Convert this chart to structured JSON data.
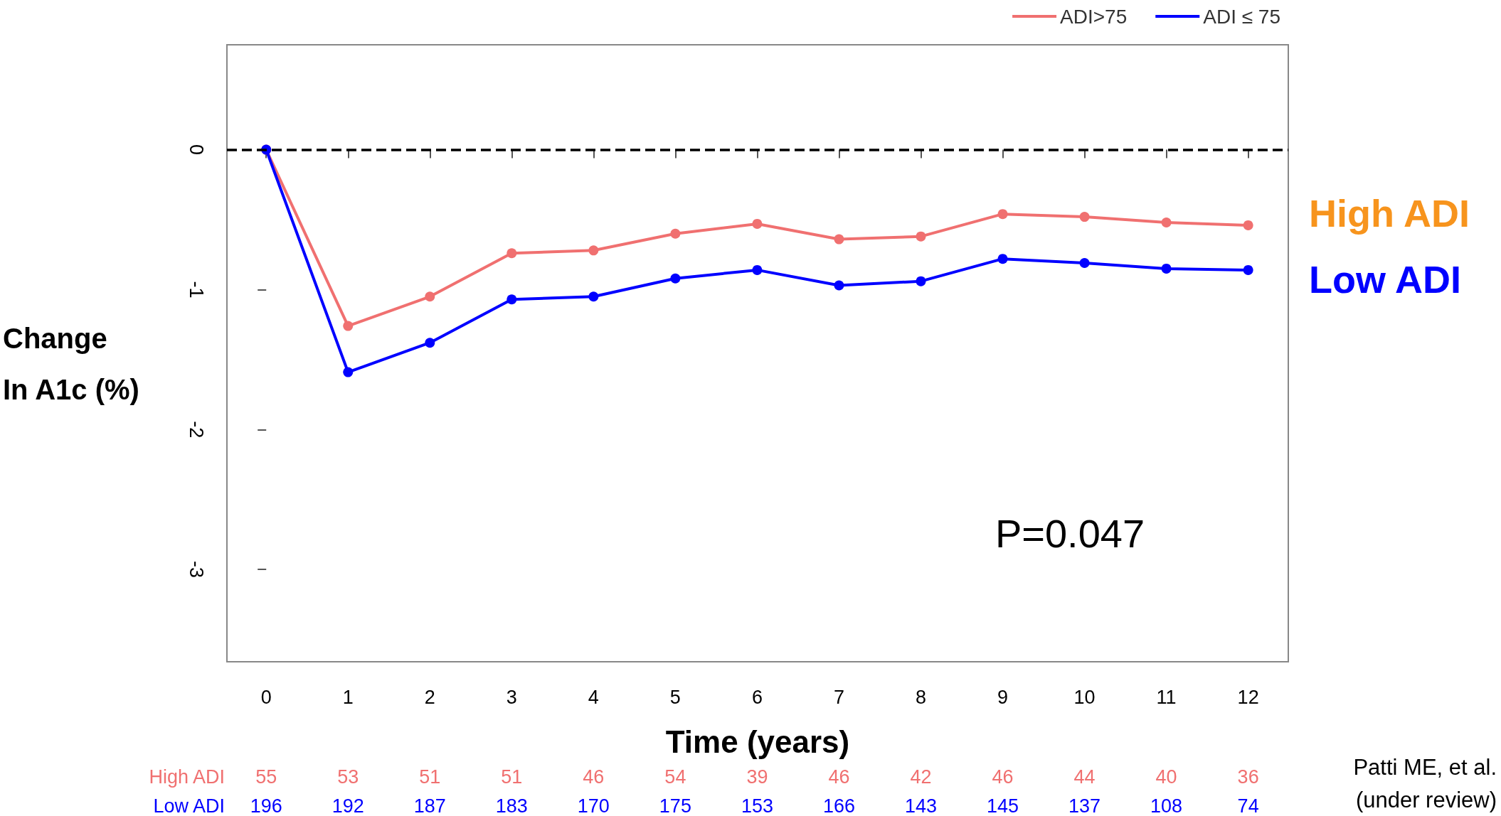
{
  "chart_data": {
    "type": "line",
    "xlabel": "Time (years)",
    "ylabel": "Change In A1c (%)",
    "x": [
      0,
      1,
      2,
      3,
      4,
      5,
      6,
      7,
      8,
      9,
      10,
      11,
      12
    ],
    "series": [
      {
        "name": "ADI>75",
        "color": "#f07070",
        "values": [
          0,
          -1.26,
          -1.05,
          -0.74,
          -0.72,
          -0.6,
          -0.53,
          -0.64,
          -0.62,
          -0.46,
          -0.48,
          -0.52,
          -0.54
        ]
      },
      {
        "name": "ADI ≤ 75",
        "color": "#0000ff",
        "values": [
          0,
          -1.59,
          -1.38,
          -1.07,
          -1.05,
          -0.92,
          -0.86,
          -0.97,
          -0.94,
          -0.78,
          -0.81,
          -0.85,
          -0.86
        ]
      }
    ],
    "xlim": [
      -0.48,
      12.49
    ],
    "xticks": [
      0,
      1,
      2,
      3,
      4,
      5,
      6,
      7,
      8,
      9,
      10,
      11,
      12
    ],
    "ylim": [
      -3.66,
      0.75
    ],
    "yticks": [
      -3,
      -2,
      -1,
      0
    ],
    "ref_lines": [
      {
        "axis": "y",
        "value": 0,
        "color": "#000000",
        "line_style": "dashed"
      }
    ],
    "legend": "top right",
    "marker": "circle",
    "line_style": "solid",
    "annotations": [
      "High ADI",
      "Low ADI",
      "P=0.047",
      "High ADI",
      "55 53 51 51 46 54 39 46 42 46 44 40 36",
      "Low ADI",
      "196 192 187 183 170 175 153 166 143 145 137 108 74",
      "Patti ME, et al.",
      "(under review)"
    ]
  }
}
